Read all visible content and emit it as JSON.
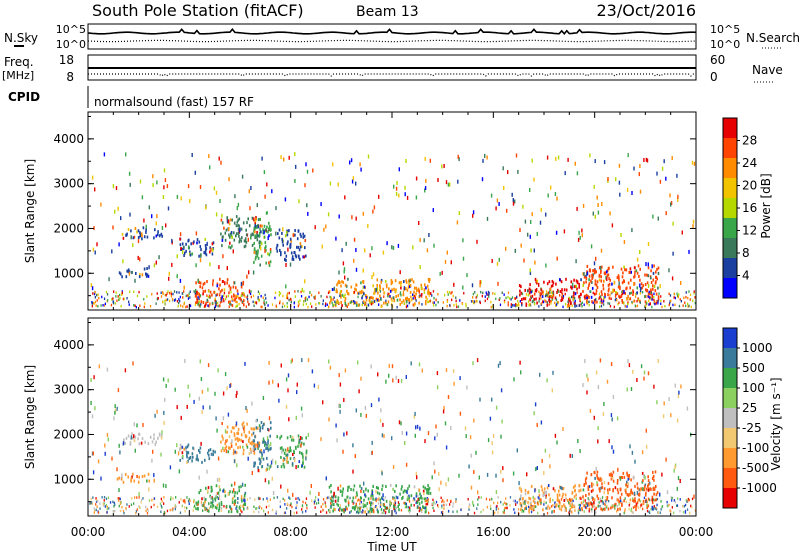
{
  "header": {
    "station": "South Pole Station (fitACF)",
    "beam": "Beam 13",
    "date": "23/Oct/2016"
  },
  "strip_noise": {
    "left_label": "N.Sky",
    "right_label": "N.Search",
    "left_ticks": [
      "10^5",
      "10^0"
    ],
    "right_ticks": [
      "10^5",
      "10^0"
    ]
  },
  "strip_freq": {
    "left_label": "Freq.",
    "left_unit": "[MHz]",
    "left_ticks": [
      "18",
      "8"
    ],
    "right_label": "Nave",
    "right_ticks": [
      "60",
      "0"
    ]
  },
  "cpid": {
    "label": "CPID",
    "text": "normalsound (fast) 157 RF"
  },
  "chart_data": [
    {
      "type": "heatmap",
      "quantity": "Power",
      "ylabel": "Slant Range [km]",
      "xlabel": "Time UT",
      "ylim": [
        180,
        4600
      ],
      "yticks": [
        "1000",
        "2000",
        "3000",
        "4000"
      ],
      "xticks": [
        "00:00",
        "04:00",
        "08:00",
        "12:00",
        "16:00",
        "20:00",
        "00:00"
      ],
      "colorbar": {
        "label": "Power [dB]",
        "ticks": [
          "28",
          "24",
          "20",
          "16",
          "12",
          "8",
          "4"
        ],
        "colors": [
          "#e60000",
          "#ff4400",
          "#ff8c00",
          "#f2c300",
          "#b5d900",
          "#3aa64a",
          "#3a7a5a",
          "#1a3fa0",
          "#0000ff"
        ]
      },
      "regions": [
        {
          "t0": 1.3,
          "t1": 2.9,
          "r0": 1800,
          "r1": 2050,
          "color": "#1a3fa0"
        },
        {
          "t0": 1.1,
          "t1": 2.4,
          "r0": 950,
          "r1": 1150,
          "color": "#1a3fa0"
        },
        {
          "t0": 3.6,
          "t1": 5.0,
          "r0": 1400,
          "r1": 1800,
          "color": "#1a3fa0"
        },
        {
          "t0": 5.2,
          "t1": 6.8,
          "r0": 1600,
          "r1": 2300,
          "color": "#3a7a5a"
        },
        {
          "t0": 4.2,
          "t1": 6.2,
          "r0": 300,
          "r1": 900,
          "color": "#ff4400"
        },
        {
          "t0": 6.5,
          "t1": 7.2,
          "r0": 1200,
          "r1": 2400,
          "color": "#3aa64a"
        },
        {
          "t0": 7.4,
          "t1": 8.6,
          "r0": 1300,
          "r1": 2000,
          "color": "#1a3fa0"
        },
        {
          "t0": 9.5,
          "t1": 13.5,
          "r0": 300,
          "r1": 900,
          "color": "#ff8c00"
        },
        {
          "t0": 17.0,
          "t1": 19.5,
          "r0": 300,
          "r1": 900,
          "color": "#e60000"
        },
        {
          "t0": 19.5,
          "t1": 22.5,
          "r0": 350,
          "r1": 1200,
          "color": "#ff4400"
        }
      ]
    },
    {
      "type": "heatmap",
      "quantity": "Velocity",
      "ylabel": "Slant Range [km]",
      "xlabel": "Time UT",
      "ylim": [
        180,
        4600
      ],
      "yticks": [
        "1000",
        "2000",
        "3000",
        "4000"
      ],
      "xticks": [
        "00:00",
        "04:00",
        "08:00",
        "12:00",
        "16:00",
        "20:00",
        "00:00"
      ],
      "colorbar": {
        "label": "Velocity [m s⁻¹]",
        "ticks": [
          "1000",
          "500",
          "100",
          "25",
          "-25",
          "-100",
          "-500",
          "-1000"
        ],
        "colors": [
          "#1a3fd0",
          "#3a7a9a",
          "#3aa64a",
          "#8cd060",
          "#bfbfbf",
          "#f2c870",
          "#ff9a30",
          "#ff5a10",
          "#e60000"
        ]
      },
      "regions": [
        {
          "t0": 1.3,
          "t1": 2.9,
          "r0": 1800,
          "r1": 2050,
          "color": "#bfbfbf"
        },
        {
          "t0": 1.1,
          "t1": 2.4,
          "r0": 950,
          "r1": 1150,
          "color": "#ff9a30"
        },
        {
          "t0": 3.6,
          "t1": 5.0,
          "r0": 1400,
          "r1": 1800,
          "color": "#3a7a9a"
        },
        {
          "t0": 5.2,
          "t1": 6.8,
          "r0": 1600,
          "r1": 2300,
          "color": "#ff9a30"
        },
        {
          "t0": 4.2,
          "t1": 6.2,
          "r0": 300,
          "r1": 900,
          "color": "#3aa64a"
        },
        {
          "t0": 6.5,
          "t1": 7.2,
          "r0": 1200,
          "r1": 2400,
          "color": "#3a7a9a"
        },
        {
          "t0": 7.4,
          "t1": 8.6,
          "r0": 1300,
          "r1": 2000,
          "color": "#3aa64a"
        },
        {
          "t0": 9.5,
          "t1": 13.5,
          "r0": 300,
          "r1": 900,
          "color": "#3aa64a"
        },
        {
          "t0": 17.0,
          "t1": 19.5,
          "r0": 300,
          "r1": 900,
          "color": "#ff9a30"
        },
        {
          "t0": 19.5,
          "t1": 22.5,
          "r0": 350,
          "r1": 1200,
          "color": "#ff5a10"
        }
      ]
    }
  ]
}
